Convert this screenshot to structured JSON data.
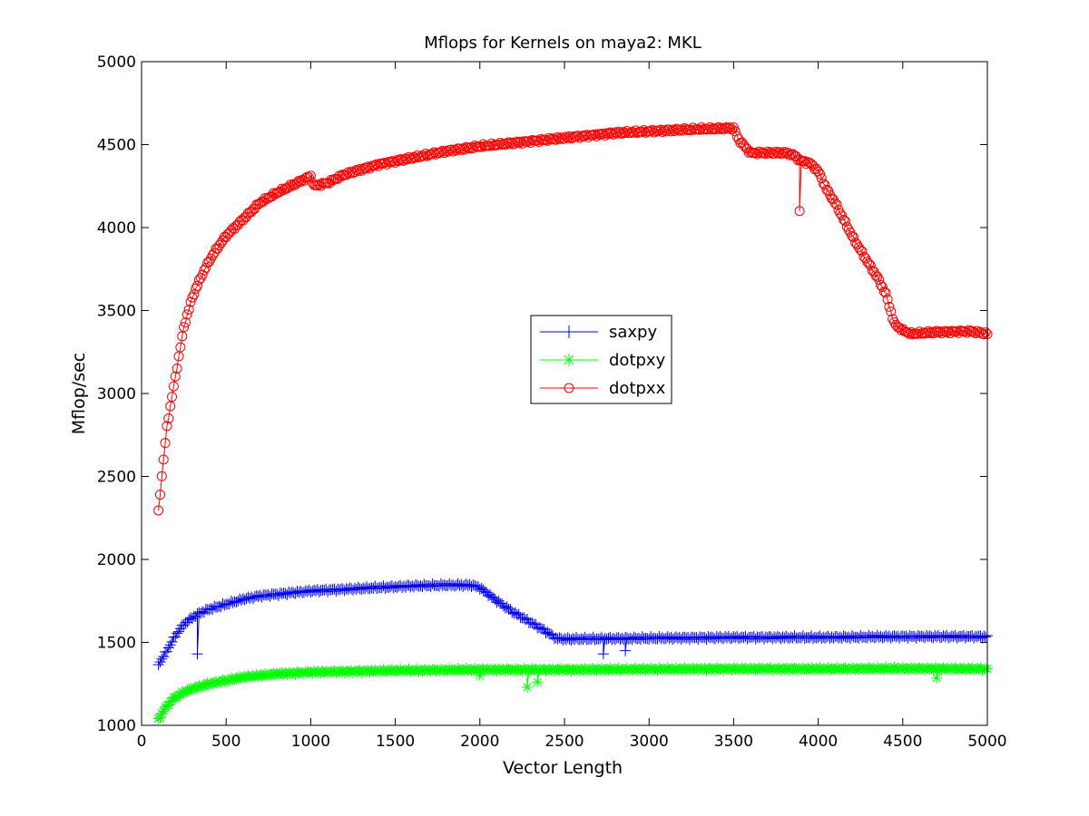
{
  "chart_data": {
    "type": "line",
    "title": "Mflops for Kernels on maya2: MKL",
    "xlabel": "Vector Length",
    "ylabel": "Mflop/sec",
    "xlim": [
      0,
      5000
    ],
    "ylim": [
      1000,
      5000
    ],
    "xticks": [
      "0",
      "500",
      "1000",
      "1500",
      "2000",
      "2500",
      "3000",
      "3500",
      "4000",
      "4500",
      "5000"
    ],
    "yticks": [
      "1000",
      "1500",
      "2000",
      "2500",
      "3000",
      "3500",
      "4000",
      "4500",
      "5000"
    ],
    "grid": false,
    "legend_position": "center",
    "series": [
      {
        "name": "saxpy",
        "color": "#0000ff",
        "marker": "plus",
        "points": [
          [
            100,
            1370
          ],
          [
            120,
            1400
          ],
          [
            150,
            1450
          ],
          [
            200,
            1540
          ],
          [
            250,
            1610
          ],
          [
            300,
            1650
          ],
          [
            350,
            1680
          ],
          [
            400,
            1700
          ],
          [
            500,
            1730
          ],
          [
            600,
            1760
          ],
          [
            700,
            1780
          ],
          [
            800,
            1790
          ],
          [
            900,
            1800
          ],
          [
            1000,
            1810
          ],
          [
            1200,
            1820
          ],
          [
            1400,
            1830
          ],
          [
            1600,
            1840
          ],
          [
            1800,
            1845
          ],
          [
            1950,
            1845
          ],
          [
            2000,
            1830
          ],
          [
            2050,
            1790
          ],
          [
            2100,
            1750
          ],
          [
            2200,
            1680
          ],
          [
            2300,
            1620
          ],
          [
            2400,
            1560
          ],
          [
            2450,
            1525
          ],
          [
            2500,
            1520
          ],
          [
            3000,
            1525
          ],
          [
            3500,
            1530
          ],
          [
            4000,
            1530
          ],
          [
            4500,
            1535
          ],
          [
            5000,
            1535
          ]
        ],
        "outliers": [
          [
            330,
            1430
          ],
          [
            2730,
            1430
          ],
          [
            2860,
            1450
          ]
        ]
      },
      {
        "name": "dotpxy",
        "color": "#00ff00",
        "marker": "star",
        "points": [
          [
            100,
            1040
          ],
          [
            120,
            1070
          ],
          [
            150,
            1120
          ],
          [
            200,
            1170
          ],
          [
            250,
            1200
          ],
          [
            300,
            1220
          ],
          [
            400,
            1250
          ],
          [
            500,
            1270
          ],
          [
            600,
            1290
          ],
          [
            800,
            1310
          ],
          [
            1000,
            1320
          ],
          [
            1500,
            1330
          ],
          [
            2000,
            1335
          ],
          [
            2500,
            1335
          ],
          [
            3000,
            1338
          ],
          [
            3500,
            1340
          ],
          [
            4000,
            1340
          ],
          [
            4500,
            1342
          ],
          [
            5000,
            1340
          ]
        ],
        "outliers": [
          [
            2000,
            1300
          ],
          [
            2280,
            1230
          ],
          [
            2340,
            1260
          ],
          [
            4700,
            1285
          ]
        ]
      },
      {
        "name": "dotpxx",
        "color": "#ff0000",
        "marker": "circle",
        "points": [
          [
            100,
            2290
          ],
          [
            110,
            2400
          ],
          [
            130,
            2600
          ],
          [
            150,
            2800
          ],
          [
            175,
            2950
          ],
          [
            200,
            3100
          ],
          [
            250,
            3400
          ],
          [
            300,
            3580
          ],
          [
            350,
            3700
          ],
          [
            400,
            3800
          ],
          [
            450,
            3880
          ],
          [
            500,
            3950
          ],
          [
            600,
            4050
          ],
          [
            700,
            4150
          ],
          [
            800,
            4210
          ],
          [
            900,
            4260
          ],
          [
            1000,
            4310
          ],
          [
            1020,
            4250
          ],
          [
            1100,
            4270
          ],
          [
            1200,
            4320
          ],
          [
            1400,
            4380
          ],
          [
            1600,
            4420
          ],
          [
            1800,
            4460
          ],
          [
            2000,
            4490
          ],
          [
            2200,
            4510
          ],
          [
            2500,
            4540
          ],
          [
            2800,
            4570
          ],
          [
            3000,
            4580
          ],
          [
            3200,
            4590
          ],
          [
            3500,
            4600
          ],
          [
            3530,
            4530
          ],
          [
            3600,
            4450
          ],
          [
            3700,
            4450
          ],
          [
            3800,
            4450
          ],
          [
            3850,
            4440
          ],
          [
            3900,
            4400
          ],
          [
            3950,
            4390
          ],
          [
            4000,
            4340
          ],
          [
            4050,
            4230
          ],
          [
            4100,
            4150
          ],
          [
            4200,
            3950
          ],
          [
            4300,
            3780
          ],
          [
            4350,
            3700
          ],
          [
            4400,
            3600
          ],
          [
            4450,
            3420
          ],
          [
            4500,
            3380
          ],
          [
            4550,
            3360
          ],
          [
            4700,
            3370
          ],
          [
            4900,
            3375
          ],
          [
            5000,
            3360
          ]
        ],
        "outliers": [
          [
            3890,
            4100
          ]
        ]
      }
    ]
  }
}
